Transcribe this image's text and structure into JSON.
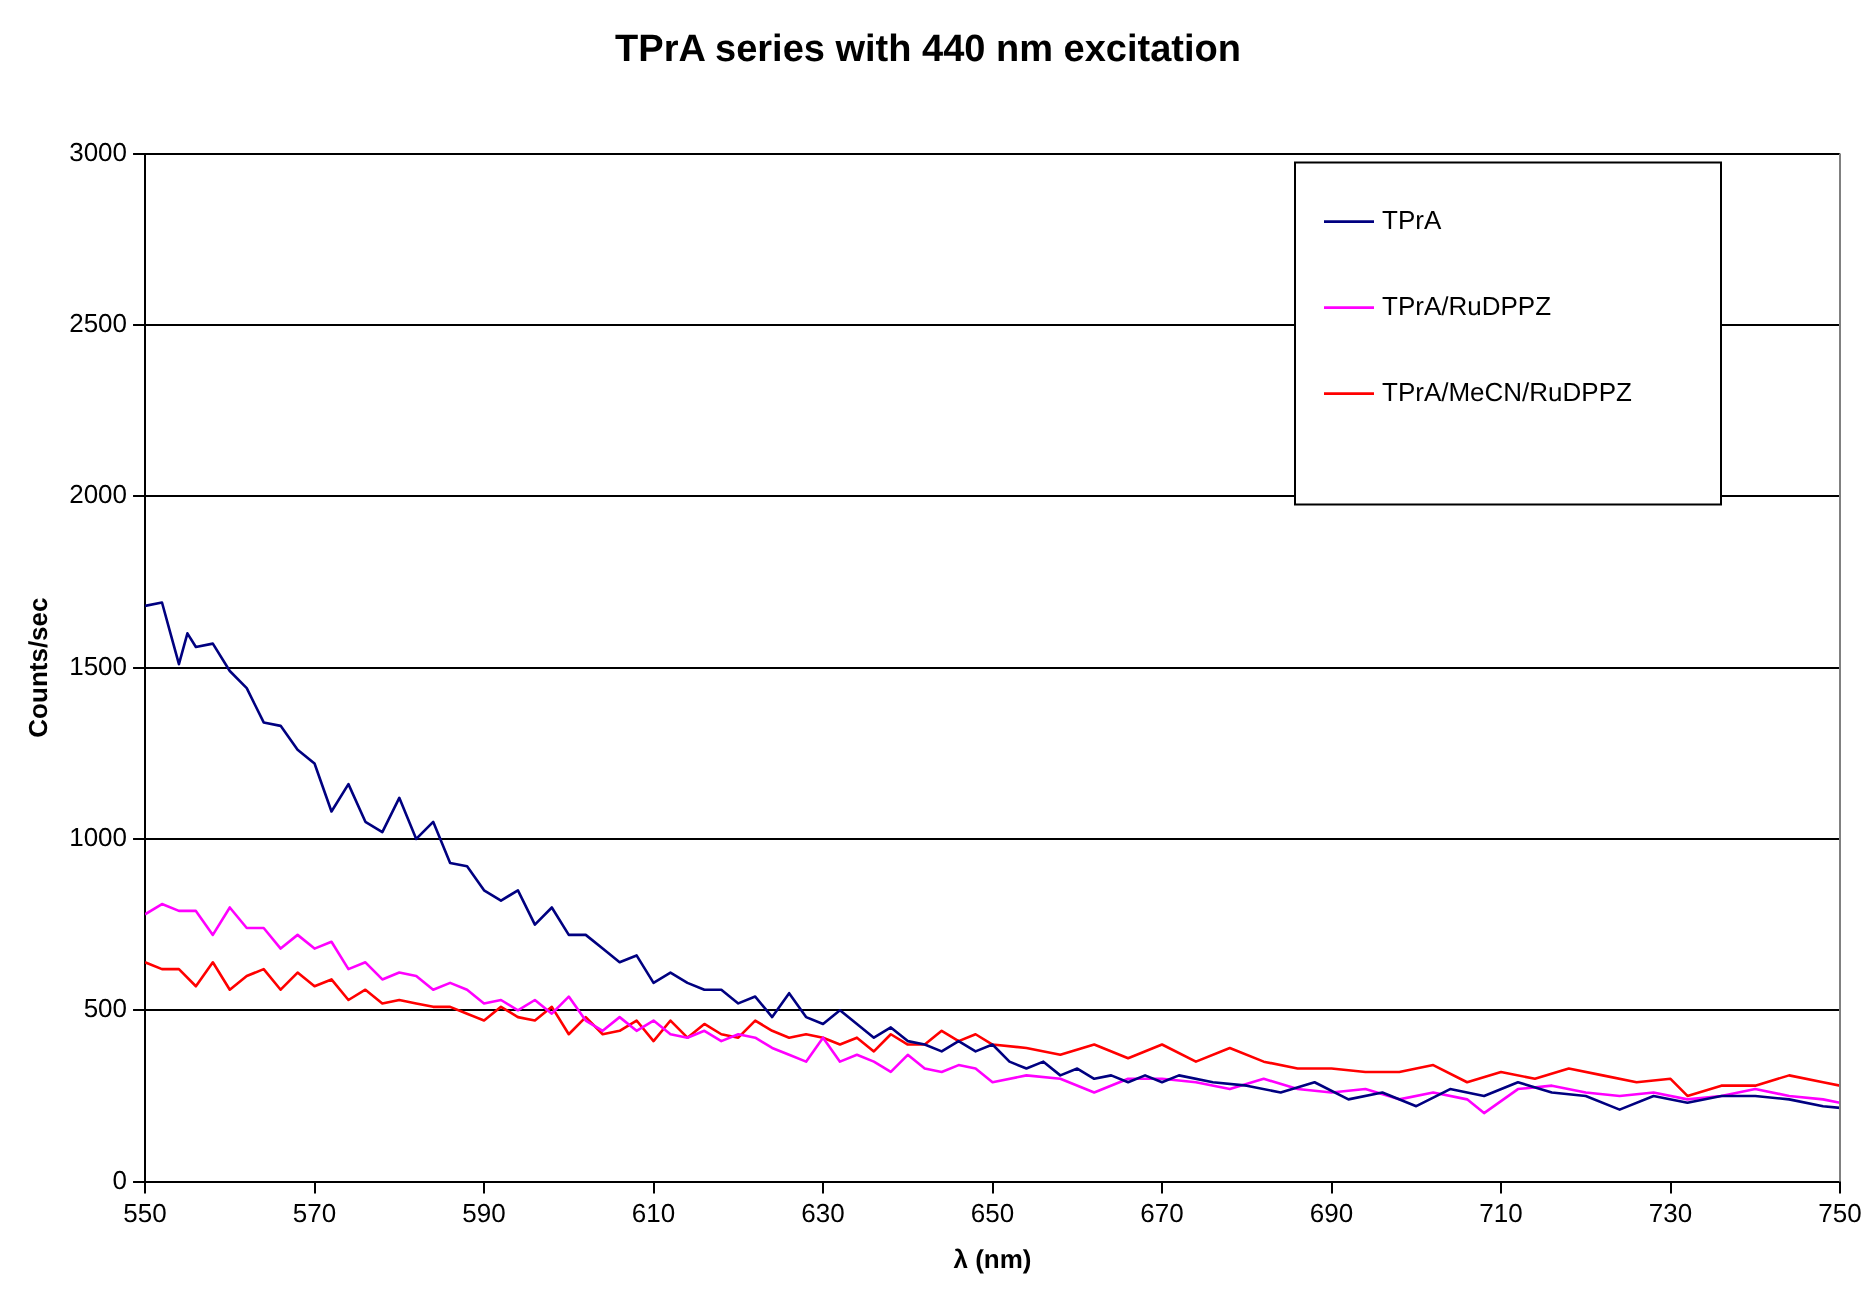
{
  "chart_data": {
    "type": "line",
    "title": "TPrA series with 440 nm excitation",
    "xlabel": "λ (nm)",
    "ylabel": "Counts/sec",
    "xlim": [
      550,
      750
    ],
    "xticks": [
      550,
      570,
      590,
      610,
      630,
      650,
      670,
      690,
      710,
      730,
      750
    ],
    "ylim": [
      0,
      3000
    ],
    "yticks": [
      0,
      500,
      1000,
      1500,
      2000,
      2500,
      3000
    ],
    "grid": "y",
    "legend": "top right",
    "marker": "none",
    "line_style": "solid",
    "series": [
      {
        "name": "TPrA",
        "color": "#000080",
        "x": [
          550,
          552,
          553,
          554,
          555,
          556,
          558,
          560,
          562,
          564,
          566,
          568,
          570,
          572,
          574,
          576,
          578,
          580,
          582,
          584,
          586,
          588,
          590,
          592,
          594,
          596,
          598,
          600,
          602,
          604,
          606,
          608,
          610,
          612,
          614,
          616,
          618,
          620,
          622,
          624,
          626,
          628,
          630,
          632,
          634,
          636,
          638,
          640,
          642,
          644,
          646,
          648,
          650,
          652,
          654,
          656,
          658,
          660,
          662,
          664,
          666,
          668,
          670,
          672,
          676,
          680,
          684,
          688,
          692,
          696,
          700,
          704,
          708,
          712,
          716,
          720,
          724,
          728,
          732,
          736,
          740,
          744,
          748,
          750
        ],
        "values": [
          1680,
          1690,
          1600,
          1510,
          1600,
          1560,
          1570,
          1490,
          1440,
          1340,
          1330,
          1260,
          1220,
          1080,
          1160,
          1050,
          1020,
          1120,
          1000,
          1050,
          930,
          920,
          850,
          820,
          850,
          750,
          800,
          720,
          720,
          680,
          640,
          660,
          580,
          610,
          580,
          560,
          560,
          520,
          540,
          480,
          550,
          480,
          460,
          500,
          460,
          420,
          450,
          410,
          400,
          380,
          410,
          380,
          400,
          350,
          330,
          350,
          310,
          330,
          300,
          310,
          290,
          310,
          290,
          310,
          290,
          280,
          260,
          290,
          240,
          260,
          220,
          270,
          250,
          290,
          260,
          250,
          210,
          250,
          230,
          250,
          250,
          240,
          220,
          215
        ]
      },
      {
        "name": "TPrA/RuDPPZ",
        "color": "#ff00ff",
        "x": [
          550,
          552,
          554,
          556,
          558,
          560,
          562,
          564,
          566,
          568,
          570,
          572,
          574,
          576,
          578,
          580,
          582,
          584,
          586,
          588,
          590,
          592,
          594,
          596,
          598,
          600,
          602,
          604,
          606,
          608,
          610,
          612,
          614,
          616,
          618,
          620,
          622,
          624,
          626,
          628,
          630,
          632,
          634,
          636,
          638,
          640,
          642,
          644,
          646,
          648,
          650,
          654,
          658,
          662,
          666,
          670,
          674,
          678,
          682,
          686,
          690,
          694,
          698,
          702,
          706,
          708,
          712,
          716,
          720,
          724,
          728,
          732,
          736,
          740,
          744,
          748,
          750
        ],
        "values": [
          780,
          810,
          790,
          790,
          720,
          800,
          740,
          740,
          680,
          720,
          680,
          700,
          620,
          640,
          590,
          610,
          600,
          560,
          580,
          560,
          520,
          530,
          500,
          530,
          490,
          540,
          470,
          440,
          480,
          440,
          470,
          430,
          420,
          440,
          410,
          430,
          420,
          390,
          370,
          350,
          420,
          350,
          370,
          350,
          320,
          370,
          330,
          320,
          340,
          330,
          290,
          310,
          300,
          260,
          300,
          300,
          290,
          270,
          300,
          270,
          260,
          270,
          240,
          260,
          240,
          200,
          270,
          280,
          260,
          250,
          260,
          240,
          250,
          270,
          250,
          240,
          230
        ]
      },
      {
        "name": "TPrA/MeCN/RuDPPZ",
        "color": "#ff0000",
        "x": [
          550,
          552,
          554,
          556,
          558,
          560,
          562,
          564,
          566,
          568,
          570,
          572,
          574,
          576,
          578,
          580,
          582,
          584,
          586,
          588,
          590,
          592,
          594,
          596,
          598,
          600,
          602,
          604,
          606,
          608,
          610,
          612,
          614,
          616,
          618,
          620,
          622,
          624,
          626,
          628,
          630,
          632,
          634,
          636,
          638,
          640,
          642,
          644,
          646,
          648,
          650,
          654,
          658,
          662,
          666,
          670,
          674,
          678,
          682,
          686,
          690,
          694,
          698,
          702,
          706,
          710,
          714,
          718,
          722,
          726,
          730,
          732,
          736,
          740,
          744,
          748,
          750
        ],
        "values": [
          640,
          620,
          620,
          570,
          640,
          560,
          600,
          620,
          560,
          610,
          570,
          590,
          530,
          560,
          520,
          530,
          520,
          510,
          510,
          490,
          470,
          510,
          480,
          470,
          510,
          430,
          480,
          430,
          440,
          470,
          410,
          470,
          420,
          460,
          430,
          420,
          470,
          440,
          420,
          430,
          420,
          400,
          420,
          380,
          430,
          400,
          400,
          440,
          410,
          430,
          400,
          390,
          370,
          400,
          360,
          400,
          350,
          390,
          350,
          330,
          330,
          320,
          320,
          340,
          290,
          320,
          300,
          330,
          310,
          290,
          300,
          250,
          280,
          280,
          310,
          290,
          280
        ]
      }
    ]
  }
}
